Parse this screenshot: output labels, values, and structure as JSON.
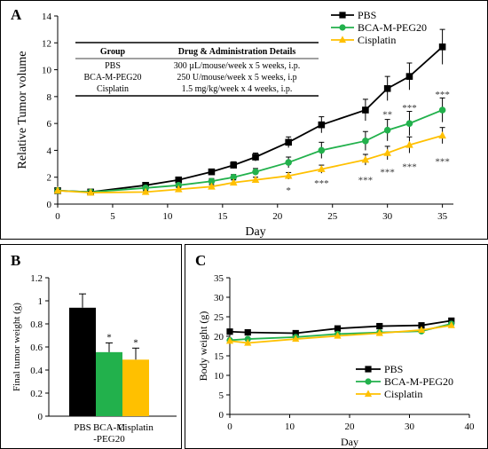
{
  "colors": {
    "pbs": "#000000",
    "bca": "#22b14c",
    "cis": "#ffc000",
    "marker_bca": "#22b14c",
    "marker_cis": "#ffc000"
  },
  "panel_a": {
    "label": "A",
    "chart_data": {
      "type": "line",
      "xlabel": "Day",
      "ylabel": "Relative Tumor volume",
      "xlim": [
        0,
        36
      ],
      "ylim": [
        0,
        14
      ],
      "xticks": [
        "0",
        "5",
        "10",
        "15",
        "20",
        "25",
        "30",
        "35"
      ],
      "yticks": [
        "0",
        "2",
        "4",
        "6",
        "8",
        "10",
        "12",
        "14"
      ],
      "series": [
        {
          "name": "PBS",
          "color": "#000000",
          "marker": "square",
          "x": [
            0,
            3,
            8,
            11,
            14,
            16,
            18,
            21,
            24,
            28,
            30,
            32,
            35
          ],
          "y": [
            1.0,
            0.9,
            1.4,
            1.8,
            2.4,
            2.9,
            3.5,
            4.6,
            5.9,
            7.0,
            8.6,
            9.5,
            11.7
          ],
          "err": [
            0.15,
            0.15,
            0.15,
            0.2,
            0.2,
            0.25,
            0.3,
            0.4,
            0.6,
            0.8,
            0.9,
            1.0,
            1.3
          ]
        },
        {
          "name": "BCA-M-PEG20",
          "color": "#22b14c",
          "marker": "circle",
          "x": [
            0,
            3,
            8,
            11,
            14,
            16,
            18,
            21,
            24,
            28,
            30,
            32,
            35
          ],
          "y": [
            1.0,
            0.9,
            1.2,
            1.4,
            1.7,
            2.0,
            2.4,
            3.1,
            4.0,
            4.7,
            5.5,
            6.0,
            7.0
          ],
          "err": [
            0.1,
            0.1,
            0.15,
            0.15,
            0.2,
            0.2,
            0.25,
            0.4,
            0.6,
            0.7,
            0.8,
            0.9,
            0.9
          ]
        },
        {
          "name": "Cisplatin",
          "color": "#ffc000",
          "marker": "triangle",
          "x": [
            0,
            3,
            8,
            11,
            14,
            16,
            18,
            21,
            24,
            28,
            30,
            32,
            35
          ],
          "y": [
            1.0,
            0.85,
            0.9,
            1.1,
            1.3,
            1.6,
            1.8,
            2.1,
            2.6,
            3.3,
            3.8,
            4.4,
            5.1
          ],
          "err": [
            0.1,
            0.1,
            0.1,
            0.15,
            0.15,
            0.2,
            0.2,
            0.25,
            0.3,
            0.4,
            0.5,
            0.6,
            0.6
          ]
        }
      ],
      "annotations": [
        {
          "x": 21,
          "y": 1.05,
          "text": "*"
        },
        {
          "x": 24,
          "y": 1.6,
          "text": "***"
        },
        {
          "x": 28,
          "y": 1.8,
          "text": "***"
        },
        {
          "x": 30,
          "y": 2.4,
          "text": "***"
        },
        {
          "x": 32,
          "y": 2.8,
          "text": "***"
        },
        {
          "x": 35,
          "y": 3.2,
          "text": "***"
        },
        {
          "x": 30,
          "y": 6.7,
          "text": "**"
        },
        {
          "x": 32,
          "y": 7.2,
          "text": "***"
        },
        {
          "x": 35,
          "y": 8.2,
          "text": "***"
        }
      ],
      "legend_position": "top-right"
    },
    "table": {
      "headers": [
        "Group",
        "Drug & Administration Details"
      ],
      "rows": [
        [
          "PBS",
          "300 µL/mouse/week x 5 weeks, i.p."
        ],
        [
          "BCA-M-PEG20",
          "250 U/mouse/week x 5 weeks, i.p"
        ],
        [
          "Cisplatin",
          "1.5 mg/kg/week x 4 weeks, i.p."
        ]
      ]
    }
  },
  "panel_b": {
    "label": "B",
    "chart_data": {
      "type": "bar",
      "ylabel": "Final tumor weight (g)",
      "ylim": [
        0,
        1.2
      ],
      "yticks": [
        "0",
        "0.2",
        "0.4",
        "0.6",
        "0.8",
        "1",
        "1.2"
      ],
      "categories": [
        [
          "PBS"
        ],
        [
          "BCA-M",
          "-PEG20"
        ],
        [
          "Cisplatin"
        ]
      ],
      "values": [
        0.94,
        0.555,
        0.49
      ],
      "err": [
        0.12,
        0.08,
        0.1
      ],
      "colors": [
        "#000000",
        "#22b14c",
        "#ffc000"
      ],
      "annotations": [
        "",
        "*",
        "*"
      ]
    }
  },
  "panel_c": {
    "label": "C",
    "chart_data": {
      "type": "line",
      "xlabel": "Day",
      "ylabel": "Body weight (g)",
      "xlim": [
        0,
        40
      ],
      "ylim": [
        0,
        35
      ],
      "xticks": [
        "0",
        "10",
        "20",
        "30",
        "40"
      ],
      "yticks": [
        "0",
        "5",
        "10",
        "15",
        "20",
        "25",
        "30",
        "35"
      ],
      "series": [
        {
          "name": "PBS",
          "color": "#000000",
          "marker": "square",
          "x": [
            0,
            3,
            11,
            18,
            25,
            32,
            37
          ],
          "y": [
            21.2,
            21.0,
            20.8,
            22.0,
            22.6,
            22.8,
            24.0
          ]
        },
        {
          "name": "BCA-M-PEG20",
          "color": "#22b14c",
          "marker": "circle",
          "x": [
            0,
            3,
            11,
            18,
            25,
            32,
            37
          ],
          "y": [
            19.0,
            19.3,
            19.8,
            20.6,
            21.0,
            21.3,
            23.2
          ]
        },
        {
          "name": "Cisplatin",
          "color": "#ffc000",
          "marker": "triangle",
          "x": [
            0,
            3,
            11,
            18,
            25,
            32,
            37
          ],
          "y": [
            18.8,
            18.3,
            19.3,
            20.1,
            20.8,
            21.6,
            22.8
          ]
        }
      ],
      "legend_position": "bottom-right"
    }
  }
}
